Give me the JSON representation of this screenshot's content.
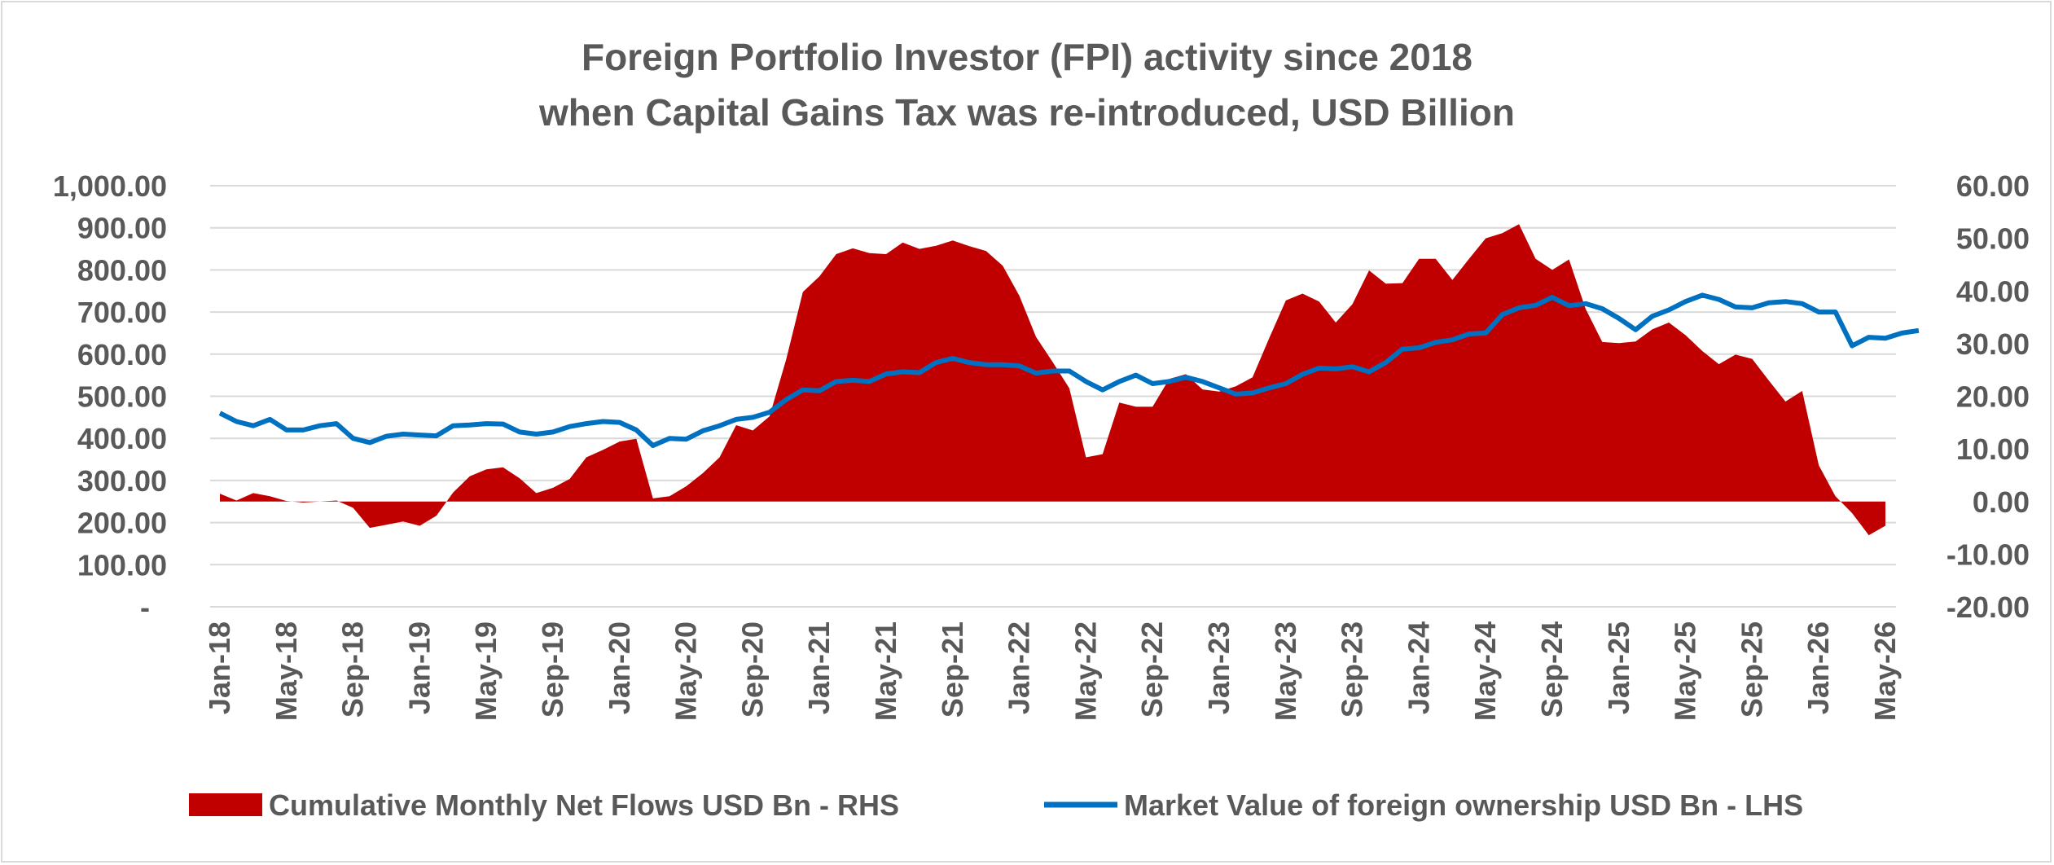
{
  "chart_data": {
    "type": "area+line",
    "title_lines": [
      "Foreign Portfolio Investor (FPI) activity since 2018",
      "when Capital Gains Tax was re-introduced, USD Billion"
    ],
    "left_axis": {
      "min": 0,
      "max": 1000,
      "ticks": [
        {
          "value": 0,
          "label": "-"
        },
        {
          "value": 100,
          "label": "100.00"
        },
        {
          "value": 200,
          "label": "200.00"
        },
        {
          "value": 300,
          "label": "300.00"
        },
        {
          "value": 400,
          "label": "400.00"
        },
        {
          "value": 500,
          "label": "500.00"
        },
        {
          "value": 600,
          "label": "600.00"
        },
        {
          "value": 700,
          "label": "700.00"
        },
        {
          "value": 800,
          "label": "800.00"
        },
        {
          "value": 900,
          "label": "900.00"
        },
        {
          "value": 1000,
          "label": "1,000.00"
        }
      ]
    },
    "right_axis": {
      "min": -20,
      "max": 60,
      "ticks": [
        {
          "value": -20,
          "label": "-20.00"
        },
        {
          "value": -10,
          "label": "-10.00"
        },
        {
          "value": 0,
          "label": "0.00"
        },
        {
          "value": 10,
          "label": "10.00"
        },
        {
          "value": 20,
          "label": "20.00"
        },
        {
          "value": 30,
          "label": "30.00"
        },
        {
          "value": 40,
          "label": "40.00"
        },
        {
          "value": 50,
          "label": "50.00"
        },
        {
          "value": 60,
          "label": "60.00"
        }
      ]
    },
    "x_tick_labels": [
      "Jan-18",
      "May-18",
      "Sep-18",
      "Jan-19",
      "May-19",
      "Sep-19",
      "Jan-20",
      "May-20",
      "Sep-20",
      "Jan-21",
      "May-21",
      "Sep-21",
      "Jan-22",
      "May-22",
      "Sep-22",
      "Jan-23",
      "May-23",
      "Sep-23",
      "Jan-24",
      "May-24",
      "Sep-24",
      "Jan-25",
      "May-25",
      "Sep-25",
      "Jan-26",
      "May-26"
    ],
    "x_tick_every_months": 4,
    "x_start_month": "Jan-18",
    "grid": "horizontal",
    "legend_position": "bottom",
    "series": [
      {
        "name": "Cumulative Monthly Net Flows USD Bn - RHS",
        "type": "area",
        "axis": "right",
        "color": "#c00000",
        "values": [
          1.5,
          0.2,
          1.6,
          1.0,
          0.1,
          -0.2,
          0.0,
          0.2,
          -1.2,
          -5.0,
          -4.4,
          -3.8,
          -4.6,
          -2.7,
          1.7,
          4.8,
          6.1,
          6.5,
          4.4,
          1.6,
          2.6,
          4.3,
          8.4,
          9.8,
          11.4,
          11.9,
          0.6,
          1.0,
          2.9,
          5.4,
          8.4,
          14.5,
          13.5,
          16.2,
          27.0,
          39.8,
          42.8,
          47.0,
          48.1,
          47.2,
          47.0,
          49.2,
          48.0,
          48.6,
          49.6,
          48.5,
          47.6,
          44.8,
          39.1,
          31.3,
          26.5,
          21.5,
          8.4,
          9.0,
          18.8,
          18.0,
          18.0,
          23.3,
          24.2,
          21.3,
          20.9,
          21.9,
          23.6,
          31.0,
          38.2,
          39.5,
          38.0,
          34.0,
          37.5,
          43.9,
          41.4,
          41.5,
          46.1,
          46.1,
          42.1,
          46.1,
          50.0,
          51.0,
          52.7,
          46.1,
          44.0,
          46.0,
          36.6,
          30.3,
          30.1,
          30.4,
          32.7,
          34.0,
          31.6,
          28.6,
          26.1,
          27.9,
          27.1,
          23.0,
          19.0,
          21.0,
          6.9,
          1.0,
          -2.2,
          -6.4,
          -4.6
        ]
      },
      {
        "name": "Market Value of foreign ownership USD Bn - LHS",
        "type": "line",
        "axis": "left",
        "color": "#0070c0",
        "values": [
          460,
          440,
          430,
          445,
          420,
          420,
          430,
          435,
          400,
          390,
          405,
          410,
          408,
          406,
          430,
          432,
          435,
          434,
          415,
          410,
          415,
          428,
          435,
          440,
          438,
          420,
          383,
          400,
          398,
          418,
          430,
          445,
          450,
          462,
          492,
          515,
          513,
          535,
          538,
          535,
          553,
          558,
          556,
          580,
          590,
          580,
          575,
          575,
          572,
          555,
          560,
          560,
          535,
          515,
          535,
          550,
          530,
          535,
          545,
          535,
          520,
          505,
          508,
          520,
          530,
          552,
          567,
          565,
          570,
          558,
          580,
          612,
          615,
          628,
          634,
          648,
          650,
          694,
          710,
          716,
          735,
          715,
          720,
          708,
          685,
          658,
          690,
          705,
          725,
          740,
          730,
          712,
          710,
          722,
          725,
          720,
          700,
          700,
          620,
          640,
          638,
          650,
          656
        ]
      }
    ]
  }
}
